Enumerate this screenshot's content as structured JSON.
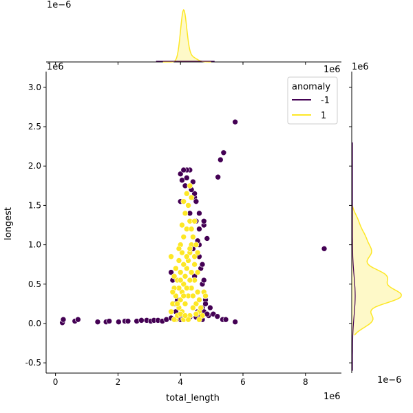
{
  "chart_data": {
    "type": "scatter",
    "title": "",
    "xlabel": "total_length",
    "ylabel": "longest",
    "x_scale_label": "1e6",
    "y_scale_label": "1e6",
    "xlim": [
      -0.3,
      9.15
    ],
    "ylim": [
      -0.63,
      3.2
    ],
    "x_ticks": [
      0,
      2,
      4,
      6,
      8
    ],
    "y_ticks": [
      -0.5,
      0.0,
      0.5,
      1.0,
      1.5,
      2.0,
      2.5,
      3.0
    ],
    "grid": false,
    "legend": {
      "title": "anomaly",
      "placement": "upper right",
      "entries": [
        {
          "label": "-1",
          "color": "#440154"
        },
        {
          "label": "1",
          "color": "#fde725"
        }
      ]
    },
    "series": [
      {
        "name": "-1",
        "color": "#440154",
        "points": [
          [
            0.22,
            0.01
          ],
          [
            0.25,
            0.05
          ],
          [
            0.62,
            0.03
          ],
          [
            0.72,
            0.05
          ],
          [
            1.35,
            0.02
          ],
          [
            1.62,
            0.02
          ],
          [
            1.72,
            0.03
          ],
          [
            2.02,
            0.02
          ],
          [
            2.22,
            0.03
          ],
          [
            2.32,
            0.03
          ],
          [
            2.6,
            0.03
          ],
          [
            2.75,
            0.04
          ],
          [
            2.92,
            0.04
          ],
          [
            3.05,
            0.03
          ],
          [
            3.15,
            0.04
          ],
          [
            3.28,
            0.04
          ],
          [
            3.42,
            0.03
          ],
          [
            3.55,
            0.05
          ],
          [
            3.7,
            0.07
          ],
          [
            3.8,
            0.05
          ],
          [
            4.9,
            0.1
          ],
          [
            5.05,
            0.12
          ],
          [
            5.18,
            0.09
          ],
          [
            5.35,
            0.05
          ],
          [
            5.45,
            0.05
          ],
          [
            5.75,
            0.02
          ],
          [
            5.2,
            1.86
          ],
          [
            5.28,
            2.08
          ],
          [
            5.38,
            2.17
          ],
          [
            5.75,
            2.56
          ],
          [
            8.6,
            0.95
          ],
          [
            4.4,
            1.8
          ],
          [
            4.45,
            1.6
          ],
          [
            4.45,
            1.65
          ],
          [
            4.35,
            1.7
          ],
          [
            4.5,
            1.3
          ],
          [
            4.6,
            1.2
          ],
          [
            4.6,
            1.0
          ],
          [
            4.75,
            1.25
          ],
          [
            4.75,
            1.3
          ],
          [
            4.85,
            1.08
          ],
          [
            4.95,
            0.2
          ],
          [
            3.7,
            0.65
          ],
          [
            3.75,
            0.55
          ],
          [
            4.65,
            0.7
          ],
          [
            4.7,
            0.5
          ],
          [
            4.8,
            0.3
          ],
          [
            4.3,
            1.95
          ],
          [
            4.2,
            1.95
          ],
          [
            4.0,
            1.9
          ],
          [
            4.05,
            1.82
          ],
          [
            4.1,
            1.95
          ],
          [
            4.15,
            1.75
          ],
          [
            4.0,
            1.55
          ],
          [
            4.3,
            1.4
          ],
          [
            4.55,
            0.15
          ],
          [
            4.65,
            0.1
          ],
          [
            3.95,
            0.1
          ],
          [
            4.7,
            0.2
          ],
          [
            4.6,
            0.85
          ],
          [
            4.55,
            1.05
          ],
          [
            4.4,
            0.95
          ],
          [
            4.45,
            0.6
          ],
          [
            4.75,
            0.15
          ],
          [
            4.85,
            0.12
          ],
          [
            4.2,
            0.07
          ],
          [
            4.0,
            0.05
          ],
          [
            4.1,
            0.07
          ],
          [
            4.8,
            0.25
          ],
          [
            4.7,
            0.05
          ],
          [
            4.3,
            0.08
          ],
          [
            3.9,
            0.06
          ],
          [
            4.6,
            0.08
          ],
          [
            4.5,
            0.08
          ],
          [
            3.9,
            0.3
          ],
          [
            3.8,
            0.25
          ],
          [
            4.6,
            1.4
          ],
          [
            4.5,
            1.55
          ],
          [
            4.2,
            1.85
          ],
          [
            3.85,
            0.15
          ],
          [
            4.7,
            0.75
          ],
          [
            4.75,
            0.55
          ]
        ]
      },
      {
        "name": "1",
        "color": "#fde725",
        "points": [
          [
            3.85,
            0.05
          ],
          [
            3.9,
            0.1
          ],
          [
            3.95,
            0.2
          ],
          [
            4.0,
            0.3
          ],
          [
            4.05,
            0.4
          ],
          [
            4.1,
            0.5
          ],
          [
            4.15,
            0.6
          ],
          [
            4.2,
            0.7
          ],
          [
            4.25,
            0.8
          ],
          [
            4.3,
            0.9
          ],
          [
            4.35,
            1.0
          ],
          [
            4.4,
            1.1
          ],
          [
            3.85,
            0.35
          ],
          [
            3.95,
            0.45
          ],
          [
            4.05,
            0.15
          ],
          [
            4.15,
            0.25
          ],
          [
            4.25,
            0.35
          ],
          [
            4.35,
            0.45
          ],
          [
            4.45,
            0.55
          ],
          [
            4.55,
            0.65
          ],
          [
            3.75,
            0.25
          ],
          [
            3.8,
            0.45
          ],
          [
            3.9,
            0.55
          ],
          [
            4.0,
            0.65
          ],
          [
            4.1,
            0.75
          ],
          [
            4.2,
            0.85
          ],
          [
            4.3,
            0.95
          ],
          [
            4.4,
            0.35
          ],
          [
            4.5,
            0.25
          ],
          [
            4.6,
            0.15
          ],
          [
            4.0,
            1.0
          ],
          [
            4.1,
            1.1
          ],
          [
            4.2,
            1.2
          ],
          [
            4.3,
            1.3
          ],
          [
            4.25,
            1.5
          ],
          [
            4.35,
            1.6
          ],
          [
            4.15,
            1.4
          ],
          [
            4.05,
            1.25
          ],
          [
            3.95,
            0.8
          ],
          [
            3.85,
            0.7
          ],
          [
            4.45,
            0.85
          ],
          [
            4.5,
            1.0
          ],
          [
            4.55,
            0.4
          ],
          [
            4.6,
            0.3
          ],
          [
            4.65,
            0.2
          ],
          [
            3.7,
            0.15
          ],
          [
            3.75,
            0.4
          ],
          [
            3.8,
            0.6
          ],
          [
            3.7,
            0.85
          ],
          [
            4.1,
            0.05
          ],
          [
            4.3,
            0.1
          ],
          [
            4.5,
            0.12
          ],
          [
            4.7,
            0.1
          ],
          [
            4.2,
            1.65
          ],
          [
            4.1,
            1.55
          ],
          [
            4.3,
            1.75
          ],
          [
            4.35,
            1.2
          ],
          [
            4.45,
            1.3
          ],
          [
            4.05,
            0.9
          ],
          [
            3.95,
            0.95
          ],
          [
            4.25,
            0.05
          ],
          [
            4.4,
            0.2
          ],
          [
            3.9,
            0.25
          ],
          [
            4.0,
            0.12
          ],
          [
            4.15,
            0.1
          ],
          [
            4.35,
            0.65
          ],
          [
            4.45,
            0.75
          ],
          [
            4.55,
            0.9
          ],
          [
            4.2,
            0.45
          ],
          [
            4.0,
            0.55
          ],
          [
            4.1,
            0.35
          ],
          [
            4.3,
            0.55
          ],
          [
            3.8,
            0.05
          ],
          [
            4.6,
            0.05
          ],
          [
            4.75,
            0.4
          ],
          [
            4.8,
            0.35
          ]
        ]
      }
    ],
    "top_marginal": {
      "scale_label": "1e−6",
      "series": [
        {
          "name": "-1",
          "color": "#440154"
        },
        {
          "name": "1",
          "color": "#fde725",
          "peak_x": 4.1
        }
      ]
    },
    "right_marginal": {
      "scale_label": "1e−6",
      "series": [
        {
          "name": "-1",
          "color": "#440154"
        },
        {
          "name": "1",
          "color": "#fde725"
        }
      ]
    }
  }
}
